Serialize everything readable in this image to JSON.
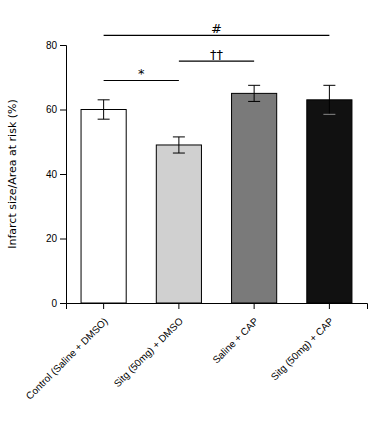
{
  "chart_data": {
    "type": "bar",
    "categories": [
      "Control (Saline + DMSO)",
      "Sitg (50mg) + DMSO",
      "Saline + CAP",
      "Sitg (50mg) + CAP"
    ],
    "values": [
      60.0,
      49.0,
      65.0,
      63.0
    ],
    "errors": [
      3.0,
      2.5,
      2.5,
      4.5
    ],
    "colors": [
      "#FFFFFF",
      "#D0D0D0",
      "#7A7A7A",
      "#111111"
    ],
    "ylabel": "Infarct size/Area at risk (%)",
    "ylim": [
      0,
      80
    ],
    "yticks": [
      0,
      20,
      40,
      60,
      80
    ],
    "grid": false,
    "annotations": [
      {
        "x1": "Control (Saline + DMSO)",
        "x2": "Sitg (50mg) + DMSO",
        "y": 69,
        "text": "*"
      },
      {
        "x1": "Sitg (50mg) + DMSO",
        "x2": "Saline + CAP",
        "y": 75,
        "text": "††"
      },
      {
        "x1": "Control (Saline + DMSO)",
        "x2": "Sitg (50mg) + CAP",
        "y": 83,
        "text": "#"
      }
    ]
  }
}
